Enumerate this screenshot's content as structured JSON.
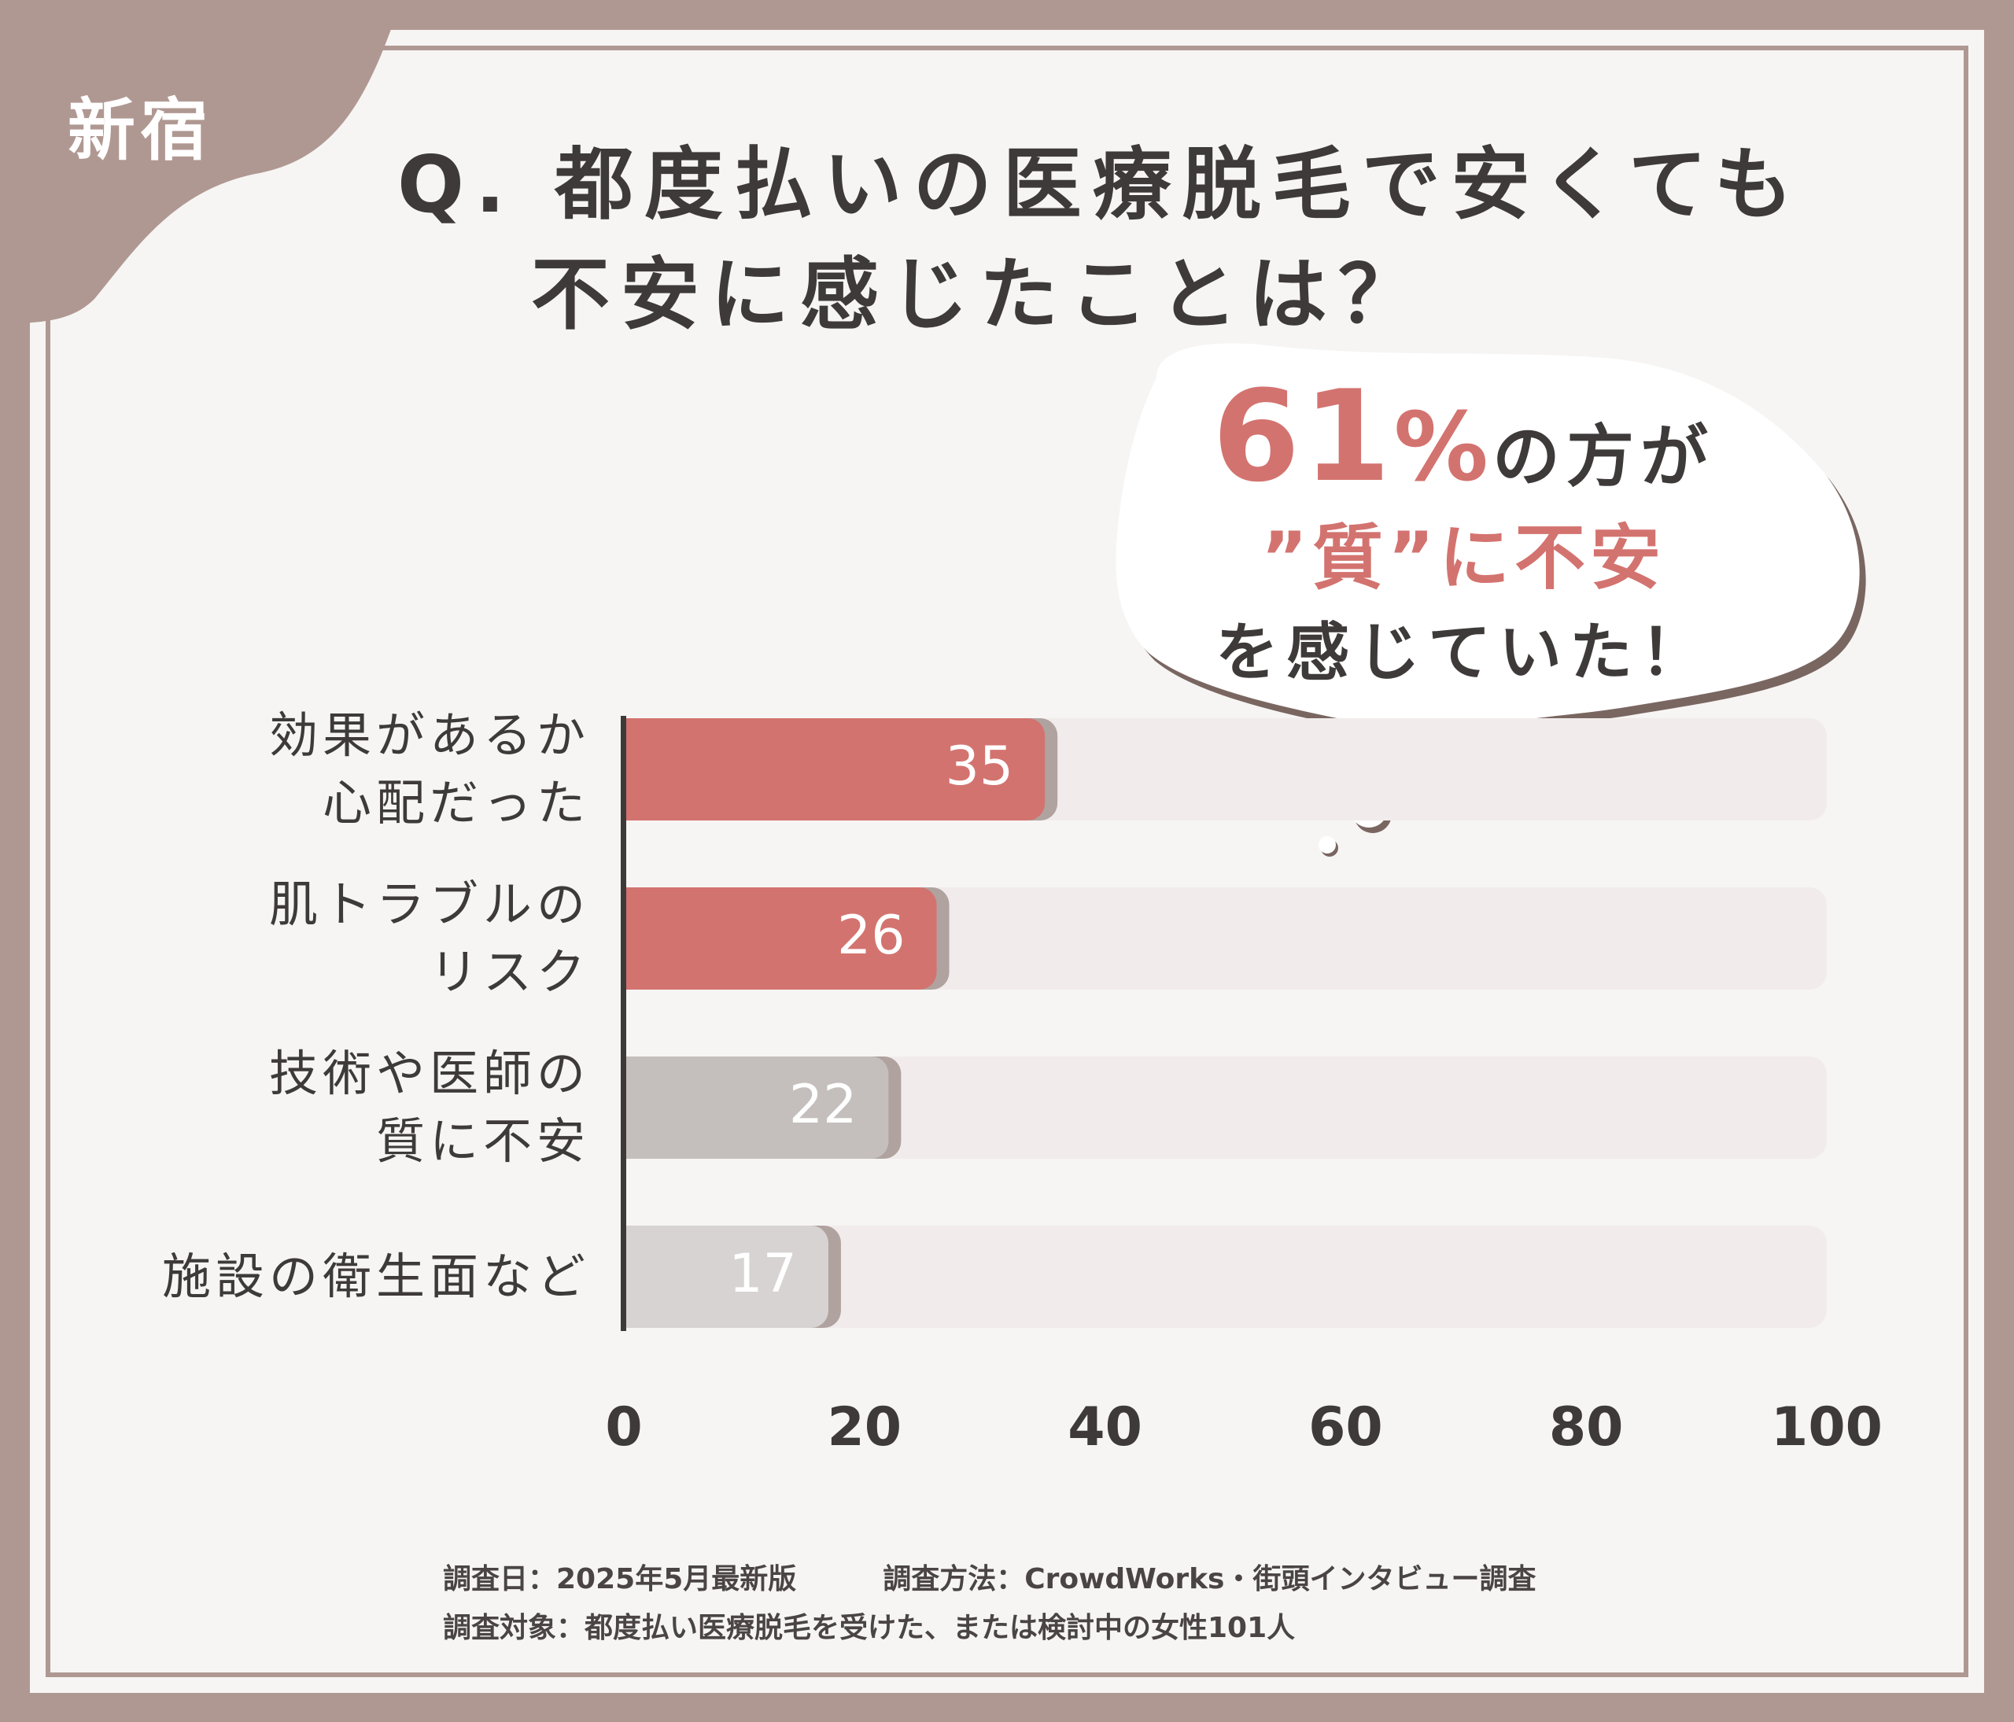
{
  "location_tag": "新宿",
  "question": {
    "line1": "Q. 都度払いの医療脱毛で安くても",
    "line2": "不安に感じたことは？"
  },
  "callout": {
    "percent": "61",
    "percent_sign": "%",
    "percent_after": "の方が",
    "line2": "”質”に不安",
    "line3": "を感じていた！"
  },
  "colors": {
    "background": "#b09892",
    "card": "#f6f5f4",
    "accent": "#d3736f",
    "bar_gray": "#c4bfbd",
    "bar_light_gray": "#d7d3d2",
    "track": "#f1eceb",
    "text": "#3e3a39"
  },
  "chart_data": {
    "type": "bar",
    "orientation": "horizontal",
    "categories": [
      "効果があるか\n心配だった",
      "肌トラブルの\nリスク",
      "技術や医師の\n質に不安",
      "施設の衛生面など"
    ],
    "values": [
      35,
      26,
      22,
      17
    ],
    "value_labels": [
      "35",
      "26",
      "22",
      "17"
    ],
    "bar_colors": [
      "#d3736f",
      "#d3736f",
      "#c4bfbd",
      "#d7d3d2"
    ],
    "xlim": [
      0,
      100
    ],
    "xticks": [
      "0",
      "20",
      "40",
      "60",
      "80",
      "100"
    ],
    "grid": false,
    "legend": "none"
  },
  "notes": {
    "line1_date": "調査日：2025年5月最新版",
    "line1_method": "調査方法：CrowdWorks・街頭インタビュー調査",
    "line2": "調査対象：都度払い医療脱毛を受けた、または検討中の女性101人"
  }
}
